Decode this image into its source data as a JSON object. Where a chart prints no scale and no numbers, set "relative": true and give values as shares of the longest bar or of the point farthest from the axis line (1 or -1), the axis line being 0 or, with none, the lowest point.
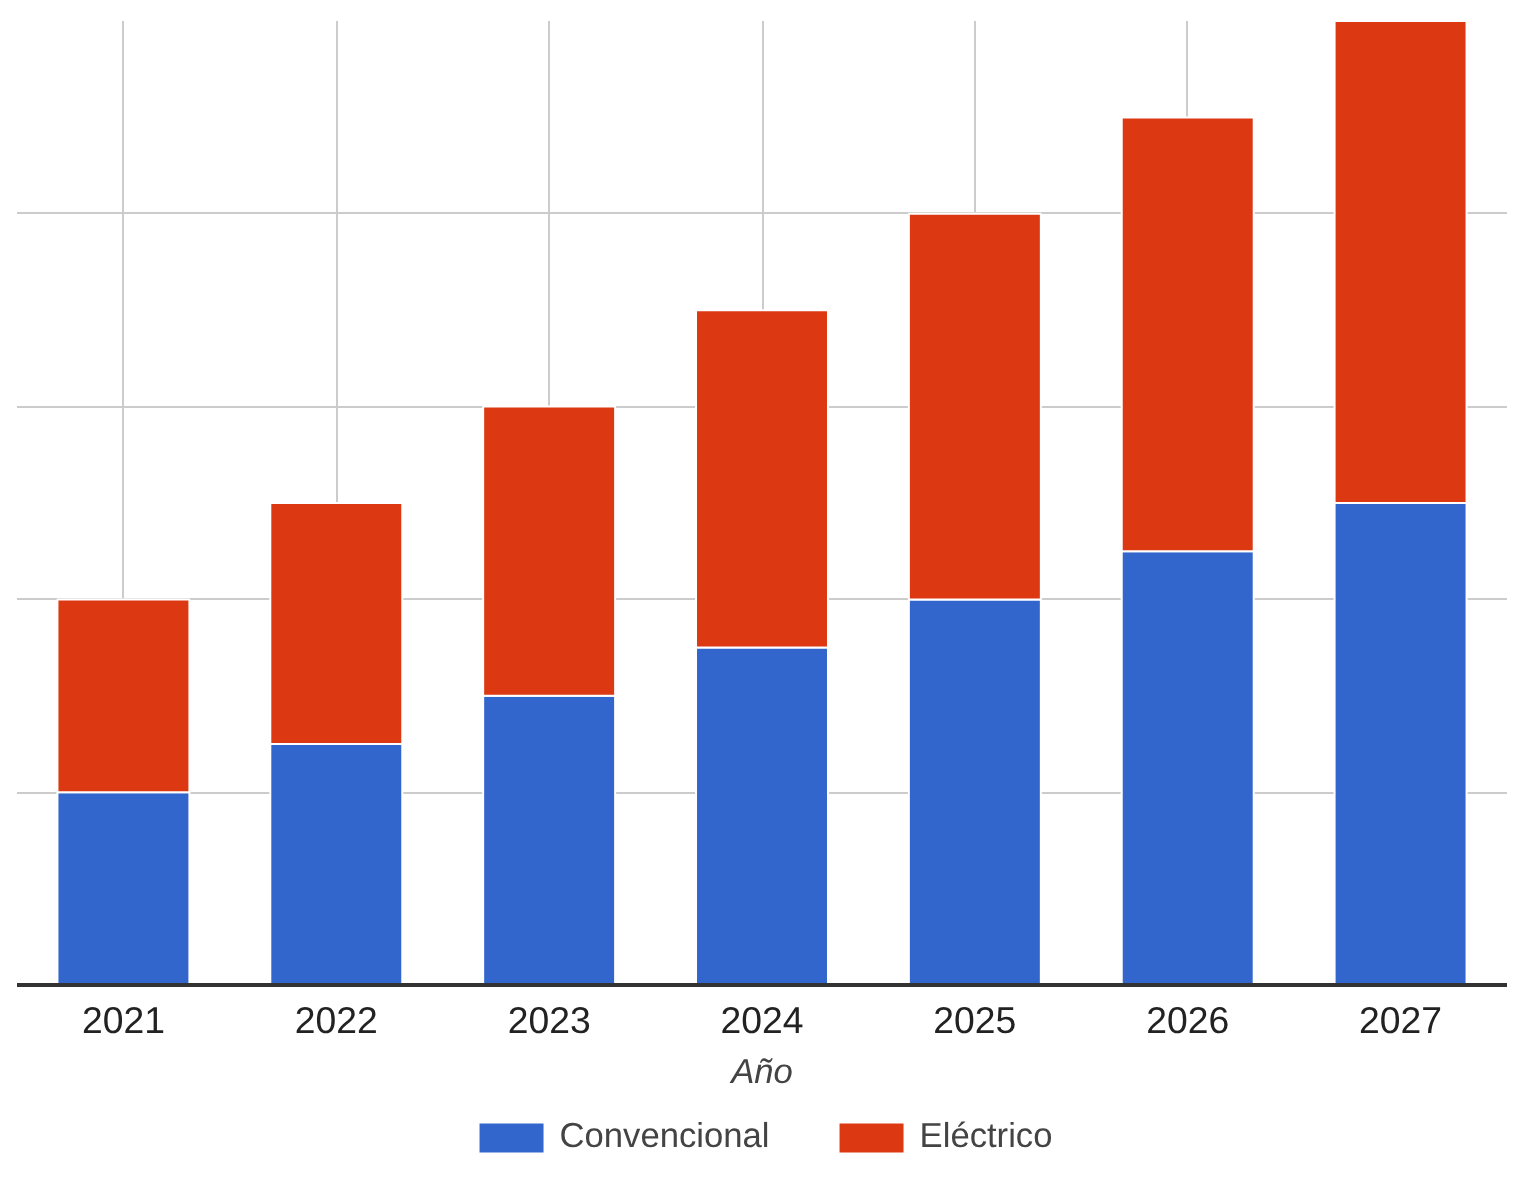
{
  "chart_data": {
    "type": "bar",
    "stacked": true,
    "relative": true,
    "xlabel": "Año",
    "categories": [
      "2021",
      "2022",
      "2023",
      "2024",
      "2025",
      "2026",
      "2027"
    ],
    "series": [
      {
        "name": "Convencional",
        "color": "#3366cc",
        "values": [
          0.2,
          0.25,
          0.3,
          0.35,
          0.4,
          0.45,
          0.5
        ]
      },
      {
        "name": "Eléctrico",
        "color": "#dc3912",
        "values": [
          0.2,
          0.25,
          0.3,
          0.35,
          0.4,
          0.45,
          0.5
        ]
      }
    ],
    "grid": true,
    "legend": "bottom"
  }
}
